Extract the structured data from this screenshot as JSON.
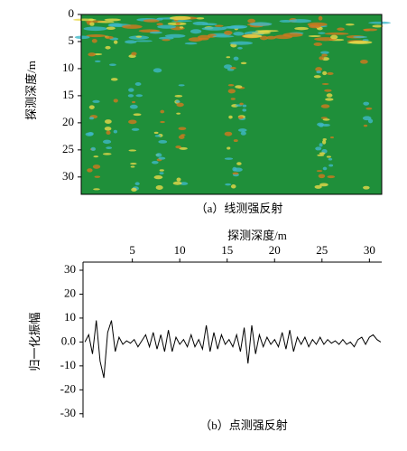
{
  "chart_data": [
    {
      "type": "image",
      "caption": "（a）线测强反射",
      "ylabel": "探测深度/m",
      "ylim": [
        0,
        33.2
      ],
      "yticks": [
        0,
        5,
        10,
        15,
        20,
        25,
        30
      ],
      "colors": [
        "#1f8f3a",
        "#e8d84a",
        "#d2781e",
        "#3fb8c8"
      ]
    },
    {
      "type": "line",
      "caption": "（b）点测强反射",
      "xlabel": "探测深度/m",
      "ylabel": "归一化振幅",
      "color": "#000000",
      "xlim": [
        -0.2,
        31.3
      ],
      "xticks": [
        5,
        10,
        15,
        20,
        25,
        30
      ],
      "ylim": [
        -31.6,
        33.4
      ],
      "yticks": [
        30,
        20,
        10,
        {
          "value": 0,
          "label": "0.0"
        },
        -10,
        -20,
        -30
      ],
      "x": [
        0,
        0.4,
        0.8,
        1.2,
        1.6,
        2.0,
        2.4,
        2.8,
        3.2,
        3.6,
        4.0,
        4.4,
        4.8,
        5.2,
        5.6,
        6.0,
        6.4,
        6.8,
        7.2,
        7.6,
        8.0,
        8.4,
        8.8,
        9.2,
        9.6,
        10.0,
        10.4,
        10.8,
        11.2,
        11.6,
        12.0,
        12.4,
        12.8,
        13.2,
        13.6,
        14.0,
        14.4,
        14.8,
        15.2,
        15.6,
        16.0,
        16.4,
        16.8,
        17.2,
        17.6,
        18.0,
        18.4,
        18.8,
        19.2,
        19.6,
        20.0,
        20.4,
        20.8,
        21.2,
        21.6,
        22.0,
        22.4,
        22.8,
        23.2,
        23.6,
        24.0,
        24.4,
        24.8,
        25.2,
        25.6,
        26.0,
        26.4,
        26.8,
        27.2,
        27.6,
        28.0,
        28.4,
        28.8,
        29.2,
        29.6,
        30.0,
        30.4,
        30.8,
        31.2
      ],
      "values": [
        0,
        3,
        -5,
        9,
        -8,
        -15,
        4,
        9,
        -4,
        2,
        -1,
        0.5,
        -0.5,
        1,
        -2,
        0.5,
        3,
        -2,
        4,
        -3,
        3,
        -4,
        5,
        -4,
        2,
        -1,
        1,
        -2,
        3,
        -2,
        1,
        -3,
        7,
        -4,
        4,
        -3,
        3,
        -1,
        1,
        -2,
        3,
        -4,
        6,
        -9,
        7,
        -5,
        3,
        -2,
        2,
        -1,
        1,
        -2,
        4,
        -3,
        5,
        -4,
        2,
        -1,
        2,
        -2,
        1,
        -1,
        2,
        -1,
        1,
        -0.5,
        0.5,
        -1,
        1,
        -1,
        0,
        -2,
        1,
        2,
        -1,
        2,
        3,
        1,
        0
      ]
    }
  ]
}
